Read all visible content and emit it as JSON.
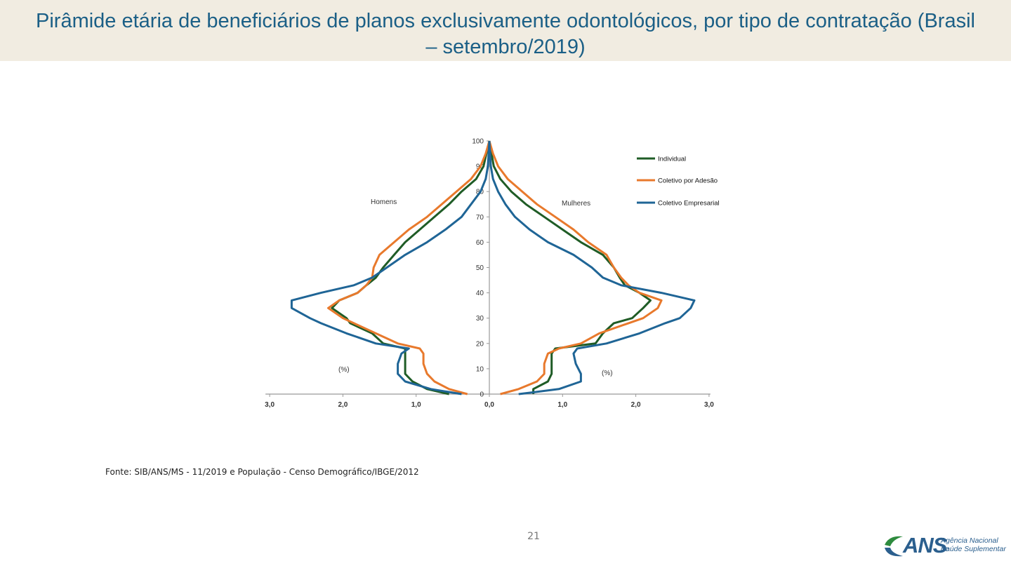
{
  "title": "Pirâmide etária de beneficiários de planos exclusivamente odontológicos, por tipo de contratação (Brasil – setembro/2019)",
  "source": "Fonte: SIB/ANS/MS - 11/2019 e População - Censo Demográfico/IBGE/2012",
  "page_number": "21",
  "logo": {
    "word": "ANS",
    "line1": "Agência Nacional de",
    "line2": "Saúde Suplementar",
    "colors": {
      "blue": "#2b5f8e",
      "green": "#2e8b3e"
    }
  },
  "colors": {
    "title": "#1b5f86",
    "title_bar": "#f1ece1"
  },
  "chart_data": {
    "type": "line",
    "chart_kind": "population pyramid",
    "x_ticks": [
      "3,0",
      "2,0",
      "1,0",
      "0,0",
      "1,0",
      "2,0",
      "3,0"
    ],
    "xlim": [
      -3,
      3
    ],
    "y_ticks": [
      "0",
      "10",
      "20",
      "30",
      "40",
      "50",
      "60",
      "70",
      "80",
      "90",
      "100"
    ],
    "ylim": [
      0,
      100
    ],
    "annotations": {
      "left_group": "Homens",
      "right_group": "Mulheres",
      "unit_left": "(%)",
      "unit_right": "(%)"
    },
    "legend_position": "top-right",
    "grid": false,
    "y_ages": [
      0,
      2,
      5,
      8,
      12,
      16,
      18,
      20,
      24,
      28,
      30,
      34,
      37,
      40,
      43,
      46,
      50,
      55,
      60,
      65,
      70,
      75,
      80,
      85,
      90,
      95,
      100
    ],
    "series": [
      {
        "name": "Individual",
        "color": "#1f5c26",
        "homens": [
          0.55,
          0.85,
          1.05,
          1.15,
          1.15,
          1.15,
          1.15,
          1.45,
          1.6,
          1.9,
          1.95,
          2.15,
          2.05,
          1.8,
          1.68,
          1.55,
          1.45,
          1.3,
          1.15,
          0.95,
          0.75,
          0.55,
          0.38,
          0.18,
          0.08,
          0.04,
          0.0
        ],
        "mulheres": [
          0.6,
          0.6,
          0.8,
          0.85,
          0.85,
          0.85,
          0.9,
          1.45,
          1.55,
          1.7,
          1.95,
          2.1,
          2.2,
          2.05,
          1.85,
          1.78,
          1.7,
          1.55,
          1.25,
          1.0,
          0.75,
          0.5,
          0.3,
          0.15,
          0.06,
          0.03,
          0.0
        ]
      },
      {
        "name": "Coletivo por Adesão",
        "color": "#e8792c",
        "homens": [
          0.3,
          0.55,
          0.75,
          0.85,
          0.9,
          0.9,
          0.95,
          1.25,
          1.55,
          1.85,
          2.0,
          2.2,
          2.05,
          1.8,
          1.68,
          1.6,
          1.58,
          1.5,
          1.3,
          1.1,
          0.85,
          0.65,
          0.45,
          0.25,
          0.12,
          0.05,
          0.0
        ],
        "mulheres": [
          0.15,
          0.4,
          0.65,
          0.75,
          0.75,
          0.8,
          0.95,
          1.25,
          1.5,
          1.9,
          2.1,
          2.3,
          2.35,
          2.05,
          1.9,
          1.8,
          1.7,
          1.6,
          1.35,
          1.15,
          0.9,
          0.65,
          0.45,
          0.25,
          0.12,
          0.05,
          0.0
        ]
      },
      {
        "name": "Coletivo Empresarial",
        "color": "#1f6596",
        "homens": [
          0.38,
          0.8,
          1.15,
          1.25,
          1.25,
          1.2,
          1.1,
          1.55,
          1.95,
          2.3,
          2.45,
          2.7,
          2.7,
          2.3,
          1.85,
          1.6,
          1.4,
          1.15,
          0.85,
          0.6,
          0.38,
          0.25,
          0.12,
          0.05,
          0.02,
          0.01,
          0.0
        ],
        "mulheres": [
          0.4,
          0.95,
          1.25,
          1.25,
          1.18,
          1.15,
          1.2,
          1.6,
          2.05,
          2.4,
          2.6,
          2.75,
          2.8,
          2.35,
          1.8,
          1.55,
          1.4,
          1.15,
          0.8,
          0.55,
          0.35,
          0.22,
          0.12,
          0.05,
          0.02,
          0.01,
          0.0
        ]
      }
    ]
  }
}
